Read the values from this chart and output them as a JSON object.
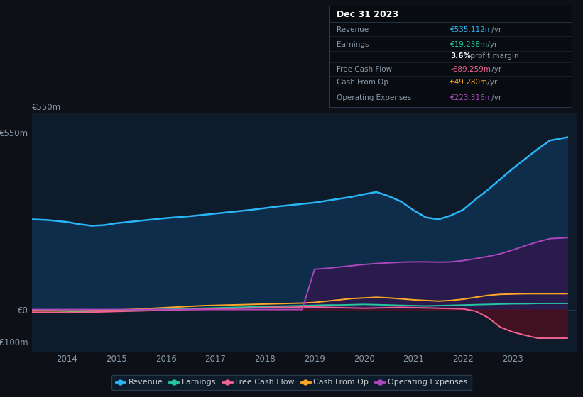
{
  "bg_color": "#0d1117",
  "plot_bg_color": "#0d1b2a",
  "ylim": [
    -130,
    610
  ],
  "yticks": [
    -100,
    0,
    550
  ],
  "ytick_labels": [
    "-€100m",
    "€0",
    "€550m"
  ],
  "xlim_start": 2013.3,
  "xlim_end": 2024.3,
  "xticks": [
    2014,
    2015,
    2016,
    2017,
    2018,
    2019,
    2020,
    2021,
    2022,
    2023
  ],
  "grid_color": "#253a52",
  "revenue_color": "#29b6f6",
  "earnings_color": "#26c6a0",
  "fcf_color": "#f06292",
  "cashfromop_color": "#ffa726",
  "opex_color": "#ab47bc",
  "revenue_fill": "#0d2d4a",
  "opex_fill": "#2d1b4e",
  "fcf_neg_fill": "#4a1020",
  "years": [
    2013.3,
    2013.6,
    2014.0,
    2014.25,
    2014.5,
    2014.75,
    2015.0,
    2015.25,
    2015.5,
    2015.75,
    2016.0,
    2016.25,
    2016.5,
    2016.75,
    2017.0,
    2017.25,
    2017.5,
    2017.75,
    2018.0,
    2018.25,
    2018.5,
    2018.75,
    2019.0,
    2019.25,
    2019.5,
    2019.75,
    2020.0,
    2020.25,
    2020.5,
    2020.75,
    2021.0,
    2021.25,
    2021.5,
    2021.75,
    2022.0,
    2022.25,
    2022.5,
    2022.75,
    2023.0,
    2023.25,
    2023.5,
    2023.75,
    2024.1
  ],
  "revenue": [
    280,
    278,
    272,
    265,
    260,
    262,
    268,
    272,
    276,
    280,
    284,
    287,
    290,
    294,
    298,
    302,
    306,
    310,
    315,
    320,
    324,
    328,
    332,
    338,
    344,
    350,
    358,
    365,
    352,
    335,
    308,
    286,
    280,
    292,
    310,
    342,
    372,
    405,
    438,
    468,
    498,
    525,
    535
  ],
  "earnings": [
    -3,
    -3,
    -5,
    -7,
    -5,
    -4,
    -3,
    -2,
    -1,
    0,
    1,
    2,
    3,
    4,
    5,
    6,
    7,
    8,
    9,
    10,
    11,
    12,
    13,
    14,
    14,
    15,
    16,
    15,
    14,
    13,
    12,
    11,
    12,
    13,
    14,
    15,
    16,
    17,
    18,
    18,
    19,
    19,
    19
  ],
  "fcf": [
    -8,
    -9,
    -10,
    -9,
    -8,
    -7,
    -6,
    -5,
    -4,
    -3,
    -2,
    -1,
    0,
    1,
    2,
    3,
    4,
    5,
    6,
    7,
    7,
    8,
    8,
    7,
    6,
    5,
    4,
    5,
    6,
    7,
    6,
    5,
    4,
    3,
    2,
    -5,
    -25,
    -55,
    -70,
    -80,
    -89,
    -89,
    -89
  ],
  "cashfromop": [
    -3,
    -4,
    -4,
    -4,
    -3,
    -2,
    -1,
    0,
    2,
    4,
    6,
    8,
    10,
    12,
    13,
    14,
    15,
    16,
    17,
    18,
    19,
    20,
    22,
    26,
    30,
    34,
    36,
    38,
    36,
    33,
    30,
    28,
    26,
    28,
    32,
    38,
    44,
    47,
    48,
    49,
    49,
    49,
    49
  ],
  "opex": [
    0,
    0,
    0,
    0,
    0,
    0,
    0,
    0,
    0,
    0,
    0,
    0,
    0,
    0,
    0,
    0,
    0,
    0,
    0,
    0,
    0,
    0,
    125,
    128,
    132,
    136,
    140,
    143,
    145,
    147,
    148,
    148,
    147,
    148,
    152,
    158,
    165,
    173,
    185,
    198,
    210,
    220,
    223
  ],
  "info_rows": [
    {
      "label": "Revenue",
      "value": "€535.112m",
      "suffix": " /yr",
      "vcolor": "#29b6f6"
    },
    {
      "label": "Earnings",
      "value": "€19.238m",
      "suffix": " /yr",
      "vcolor": "#26c6a0"
    },
    {
      "label": "",
      "value": "3.6%",
      "suffix": " profit margin",
      "vcolor": "#ffffff",
      "bold": true
    },
    {
      "label": "Free Cash Flow",
      "value": "-€89.259m",
      "suffix": " /yr",
      "vcolor": "#f06292"
    },
    {
      "label": "Cash From Op",
      "value": "€49.280m",
      "suffix": " /yr",
      "vcolor": "#ffa726"
    },
    {
      "label": "Operating Expenses",
      "value": "€223.316m",
      "suffix": " /yr",
      "vcolor": "#ab47bc"
    }
  ],
  "legend_items": [
    {
      "label": "Revenue",
      "color": "#29b6f6"
    },
    {
      "label": "Earnings",
      "color": "#26c6a0"
    },
    {
      "label": "Free Cash Flow",
      "color": "#f06292"
    },
    {
      "label": "Cash From Op",
      "color": "#ffa726"
    },
    {
      "label": "Operating Expenses",
      "color": "#ab47bc"
    }
  ]
}
